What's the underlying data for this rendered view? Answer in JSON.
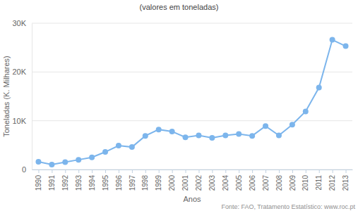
{
  "chart_data": {
    "type": "line",
    "title": "(valores em toneladas)",
    "x_label": "Anos",
    "y_label": "Toneladas (K. Milhares)",
    "source": "Fonte: FAO, Tratamento Estatístico: www.roc.pt",
    "categories": [
      "1990",
      "1991",
      "1992",
      "1993",
      "1994",
      "1995",
      "1996",
      "1997",
      "1998",
      "1999",
      "2000",
      "2001",
      "2002",
      "2003",
      "2004",
      "2005",
      "2006",
      "2007",
      "2008",
      "2009",
      "2010",
      "2011",
      "2012",
      "2013"
    ],
    "values": [
      1600,
      1000,
      1500,
      2000,
      2500,
      3600,
      4900,
      4600,
      6900,
      8200,
      7800,
      6600,
      7000,
      6500,
      7000,
      7300,
      6900,
      8900,
      7000,
      9200,
      11900,
      16800,
      26600,
      25300
    ],
    "color": "#7cb5ec",
    "marker": "circle",
    "ylim": [
      0,
      30000
    ],
    "yticks": [
      0,
      {
        "value": 10000,
        "label": "10K"
      },
      {
        "value": 20000,
        "label": "20K"
      },
      {
        "value": 30000,
        "label": "30K"
      }
    ],
    "grid": true
  }
}
